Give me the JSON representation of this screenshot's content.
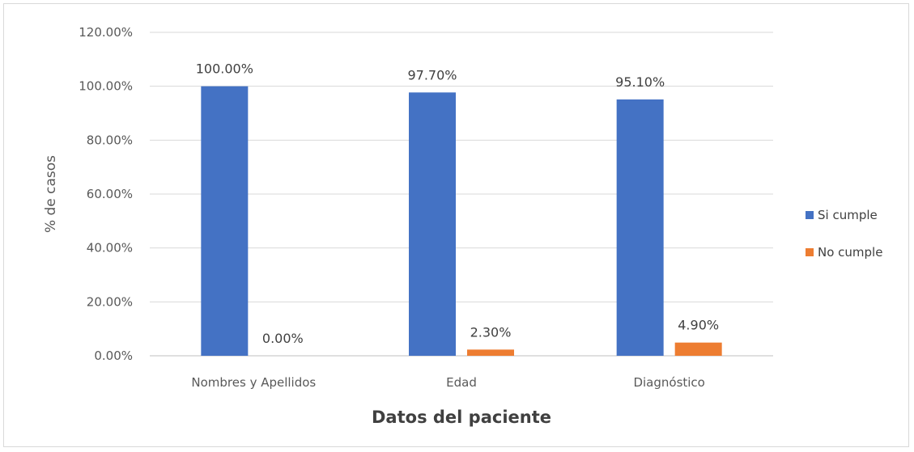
{
  "chart_data": {
    "type": "bar",
    "title": "",
    "xlabel": "Datos del paciente",
    "ylabel": "% de casos",
    "categories": [
      "Nombres y Apellidos",
      "Edad",
      "Diagnóstico"
    ],
    "series": [
      {
        "name": "Si cumple",
        "color": "#4472C4",
        "values": [
          100.0,
          97.7,
          95.1
        ],
        "labels": [
          "100.00%",
          "97.70%",
          "95.10%"
        ]
      },
      {
        "name": "No cumple",
        "color": "#ED7D31",
        "values": [
          0.0,
          2.3,
          4.9
        ],
        "labels": [
          "0.00%",
          "2.30%",
          "4.90%"
        ]
      }
    ],
    "ylim": [
      0,
      120
    ],
    "yticks": [
      0,
      20,
      40,
      60,
      80,
      100,
      120
    ],
    "ytick_labels": [
      "0.00%",
      "20.00%",
      "40.00%",
      "60.00%",
      "80.00%",
      "100.00%",
      "120.00%"
    ],
    "grid": true,
    "legend_position": "right"
  }
}
